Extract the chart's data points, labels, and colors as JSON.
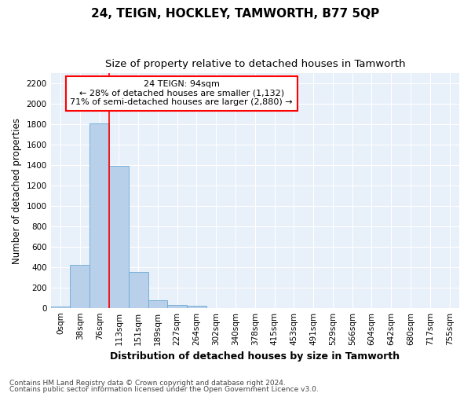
{
  "title": "24, TEIGN, HOCKLEY, TAMWORTH, B77 5QP",
  "subtitle": "Size of property relative to detached houses in Tamworth",
  "xlabel": "Distribution of detached houses by size in Tamworth",
  "ylabel": "Number of detached properties",
  "bar_labels": [
    "0sqm",
    "38sqm",
    "76sqm",
    "113sqm",
    "151sqm",
    "189sqm",
    "227sqm",
    "264sqm",
    "302sqm",
    "340sqm",
    "378sqm",
    "415sqm",
    "453sqm",
    "491sqm",
    "529sqm",
    "566sqm",
    "604sqm",
    "642sqm",
    "680sqm",
    "717sqm",
    "755sqm"
  ],
  "bar_values": [
    15,
    425,
    1810,
    1395,
    350,
    75,
    32,
    18,
    0,
    0,
    0,
    0,
    0,
    0,
    0,
    0,
    0,
    0,
    0,
    0,
    0
  ],
  "bar_color": "#b8d0ea",
  "bar_edge_color": "#6aaad4",
  "background_color": "#e8f0fa",
  "grid_color": "#ffffff",
  "ylim_max": 2300,
  "yticks": [
    0,
    200,
    400,
    600,
    800,
    1000,
    1200,
    1400,
    1600,
    1800,
    2000,
    2200
  ],
  "property_line_x": 2.5,
  "annotation_text_line1": "24 TEIGN: 94sqm",
  "annotation_text_line2": "← 28% of detached houses are smaller (1,132)",
  "annotation_text_line3": "71% of semi-detached houses are larger (2,880) →",
  "footer_line1": "Contains HM Land Registry data © Crown copyright and database right 2024.",
  "footer_line2": "Contains public sector information licensed under the Open Government Licence v3.0."
}
